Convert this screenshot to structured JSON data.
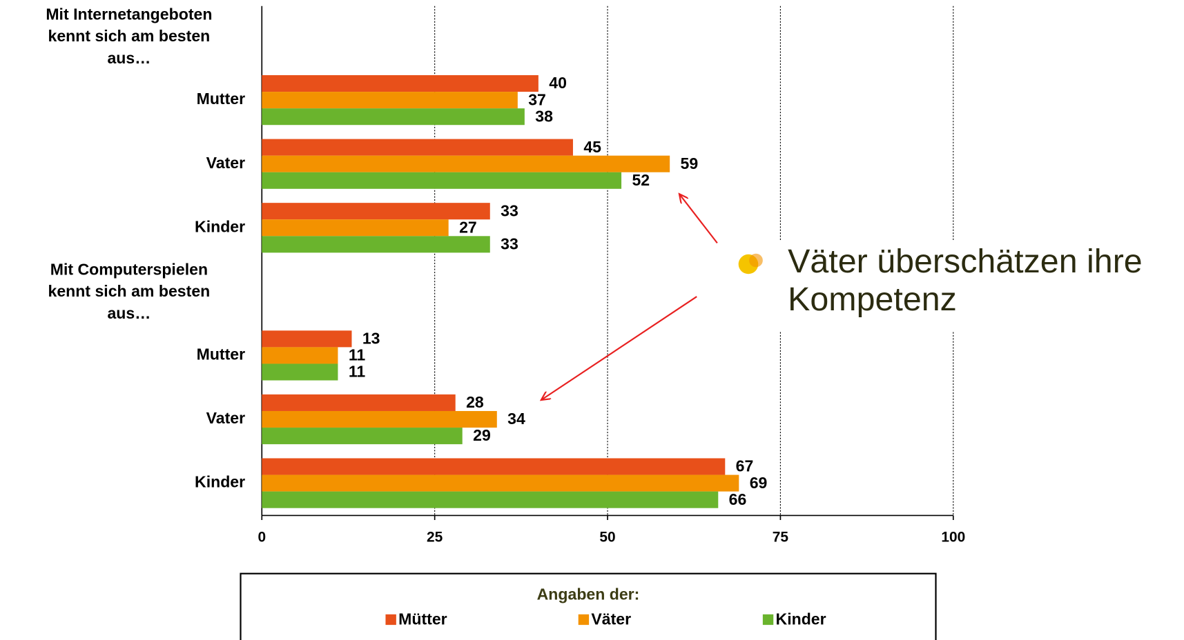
{
  "chart_data": {
    "type": "bar",
    "orientation": "horizontal",
    "categories": [
      "Mit Internetangeboten kennt sich am besten aus…",
      "Mutter",
      "Vater",
      "Kinder",
      "Mit Computerspielen kennt sich am besten aus…",
      "Mutter",
      "Vater",
      "Kinder"
    ],
    "series": [
      {
        "name": "Mütter",
        "color": "#e8501a",
        "values": [
          null,
          40,
          45,
          33,
          null,
          13,
          28,
          67
        ]
      },
      {
        "name": "Väter",
        "color": "#f39200",
        "values": [
          null,
          37,
          59,
          27,
          null,
          11,
          34,
          69
        ]
      },
      {
        "name": "Kinder",
        "color": "#6ab42d",
        "values": [
          null,
          38,
          52,
          33,
          null,
          11,
          29,
          66
        ]
      }
    ],
    "xlim": [
      0,
      100
    ],
    "xticks": [
      0,
      25,
      50,
      75,
      100
    ],
    "grid": true,
    "legend_title": "Angaben der:",
    "annotation": "Väter überschätzen ihre Kompetenz"
  }
}
